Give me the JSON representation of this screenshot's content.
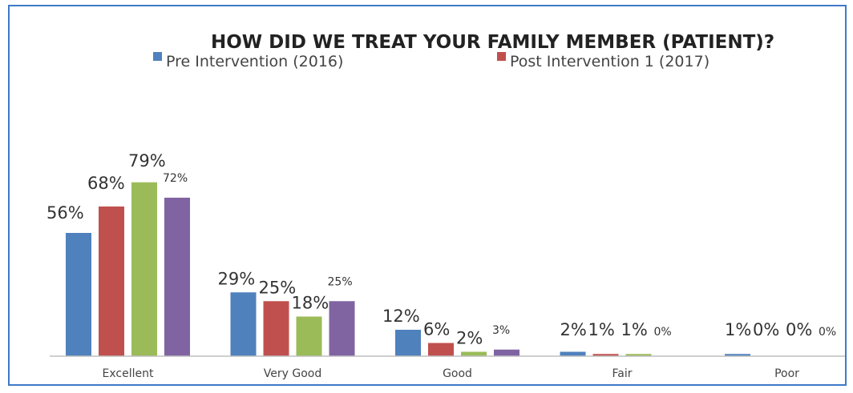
{
  "chart_data": {
    "type": "bar",
    "title": "HOW DID WE TREAT YOUR FAMILY MEMBER (PATIENT)?",
    "categories": [
      "Excellent",
      "Very Good",
      "Good",
      "Fair",
      "Poor"
    ],
    "series": [
      {
        "name": "Pre Intervention (2016)",
        "color": "#4f81bd",
        "values": [
          56,
          29,
          12,
          2,
          1
        ],
        "labels": [
          "56%",
          "29%",
          "12%",
          "2%",
          "1%"
        ]
      },
      {
        "name": "Post Intervention 1 (2017)",
        "color": "#c0504d",
        "values": [
          68,
          25,
          6,
          1,
          0
        ],
        "labels": [
          "68%",
          "25%",
          "6%",
          "1%",
          "0%"
        ]
      },
      {
        "color": "#9bbb59",
        "values": [
          79,
          18,
          2,
          1,
          0
        ],
        "labels": [
          "79%",
          "18%",
          "2%",
          "1%",
          "0%"
        ]
      },
      {
        "color": "#8064a2",
        "values": [
          72,
          25,
          3,
          0,
          0
        ],
        "labels": [
          "72%",
          "25%",
          "3%",
          "0%",
          "0%"
        ]
      }
    ],
    "legend": "top",
    "grid": false,
    "ylim": [
      0,
      100
    ]
  }
}
